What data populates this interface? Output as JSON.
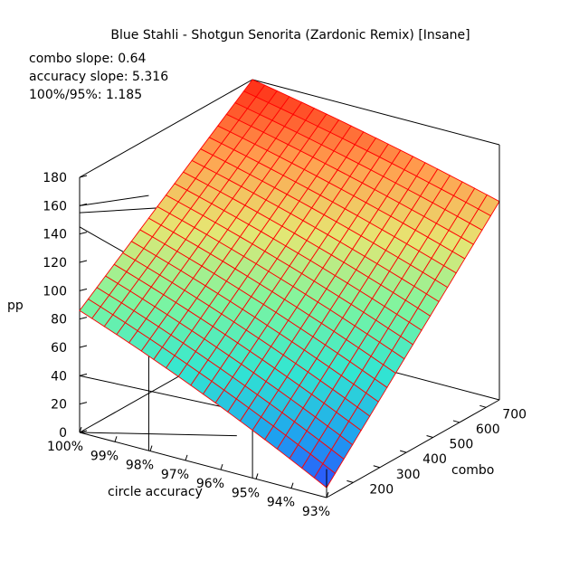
{
  "chart_data": {
    "type": "surface",
    "title": "Blue Stahli - Shotgun Senorita (Zardonic Remix) [Insane]",
    "annotations": [
      "combo slope: 0.64",
      "accuracy slope: 5.316",
      "100%/95%: 1.185"
    ],
    "zlabel": "pp",
    "xlabel": "circle accuracy",
    "ylabel": "combo",
    "z_ticks": [
      "0",
      "20",
      "40",
      "60",
      "80",
      "100",
      "120",
      "140",
      "160",
      "180"
    ],
    "x_ticks": [
      "100%",
      "99%",
      "98%",
      "97%",
      "96%",
      "95%",
      "94%",
      "93%"
    ],
    "y_ticks": [
      "200",
      "300",
      "400",
      "500",
      "600",
      "700"
    ],
    "zlim": [
      0,
      180
    ],
    "accuracy_range": [
      100,
      93
    ],
    "combo_range": [
      100,
      750
    ],
    "corner_pp": {
      "acc100_combo100": 86,
      "acc100_combo750": 180,
      "acc93_combo100": 7,
      "acc93_combo750": 140
    },
    "mesh_divisions": 20,
    "colormap": [
      "#3232ff",
      "#1ea0f0",
      "#32e6d2",
      "#7df5a0",
      "#e6e673",
      "#ffa050",
      "#ff2814"
    ],
    "grid_line_color": "#ff0000"
  }
}
